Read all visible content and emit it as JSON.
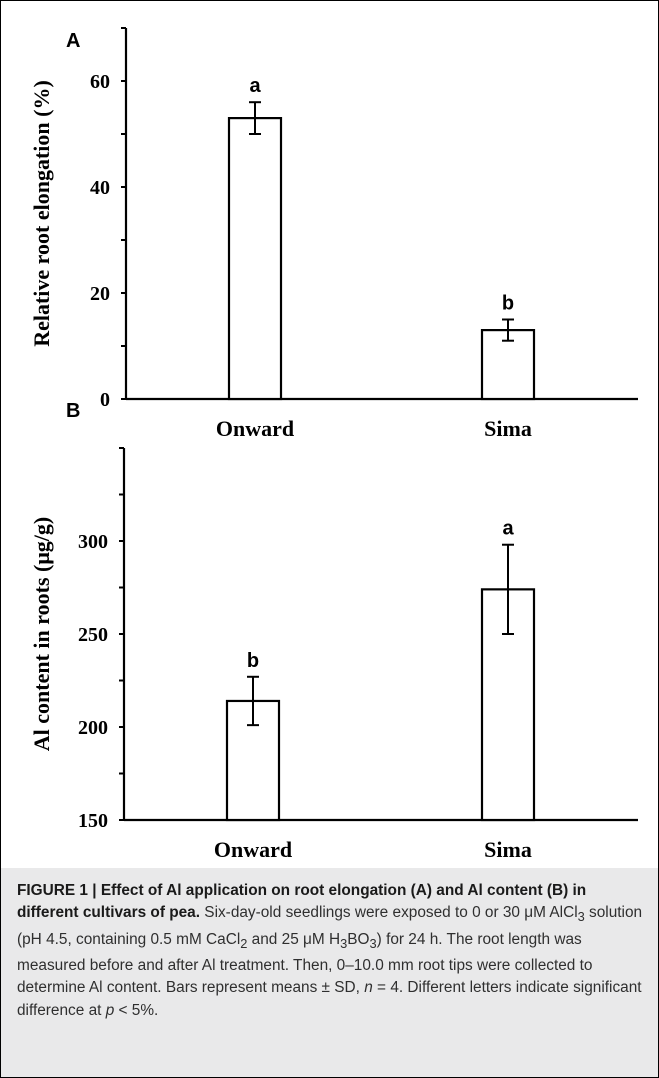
{
  "chart_data": [
    {
      "panel": "A",
      "type": "bar",
      "categories": [
        "Onward",
        "Sima"
      ],
      "values": [
        53,
        13
      ],
      "errors": [
        3,
        2
      ],
      "significance": [
        "a",
        "b"
      ],
      "ylabel": "Relative root elongation (%)",
      "ylim": [
        0,
        70
      ],
      "yticks": [
        0,
        20,
        40,
        60
      ],
      "grid": false
    },
    {
      "panel": "B",
      "type": "bar",
      "categories": [
        "Onward",
        "Sima"
      ],
      "values": [
        214,
        274
      ],
      "errors": [
        13,
        24
      ],
      "significance": [
        "b",
        "a"
      ],
      "ylabel": "Al content in roots (μg/g)",
      "ylim": [
        150,
        350
      ],
      "yticks": [
        150,
        200,
        250,
        300
      ],
      "grid": false
    }
  ],
  "caption": {
    "title": "FIGURE 1 | Effect of Al application on root elongation (A) and Al content (B) in different cultivars of pea.",
    "s1_a": " Six-day-old seedlings were exposed to 0 or 30 ",
    "s1_b": "μM AlCl",
    "s1_sub1": "3",
    "s1_c": " solution (pH 4.5, containing 0.5 mM CaCl",
    "s1_sub2": "2",
    "s1_d": " and 25 ",
    "s1_e": "μM H",
    "s1_sub3": "3",
    "s1_f": "BO",
    "s1_sub4": "3",
    "s1_g": ") for 24 h. The root length was measured before and after Al treatment. Then, 0–10.0 mm root tips were collected to determine Al content. Bars represent means ± SD, ",
    "s1_n": "n",
    "s1_h": " = 4. Different letters indicate significant difference at ",
    "s1_p": "p",
    "s1_i": " < 5%."
  }
}
